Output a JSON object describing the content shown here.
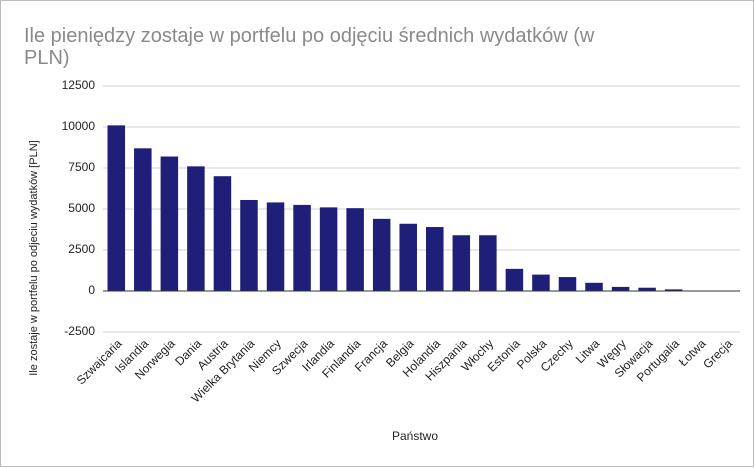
{
  "chart_data": {
    "type": "bar",
    "title": "Ile pieniędzy zostaje w portfelu po odjęciu średnich wydatków (w PLN)",
    "x_label": "Państwo",
    "y_label": "Ile zostaje w portfelu po odjeciu wydatków [PLN]",
    "categories": [
      "Szwajcaria",
      "Islandia",
      "Norwegia",
      "Dania",
      "Austria",
      "Wielka Brytania",
      "Niemcy",
      "Szwecja",
      "Irlandia",
      "Finlandia",
      "Francja",
      "Belgia",
      "Holandia",
      "Hiszpania",
      "Włochy",
      "Estonia",
      "Polska",
      "Czechy",
      "Litwa",
      "Węgry",
      "Słowacja",
      "Portugalia",
      "Łotwa",
      "Grecja"
    ],
    "values": [
      10100,
      8700,
      8200,
      7600,
      7000,
      5550,
      5400,
      5250,
      5100,
      5050,
      4400,
      4100,
      3900,
      3400,
      3400,
      1350,
      1000,
      850,
      500,
      250,
      200,
      100,
      0,
      0
    ],
    "color": "#1f1f7a",
    "ylim": [
      -2500,
      12500
    ],
    "yticks": [
      -2500,
      0,
      2500,
      5000,
      7500,
      10000,
      12500
    ],
    "grid": true
  }
}
